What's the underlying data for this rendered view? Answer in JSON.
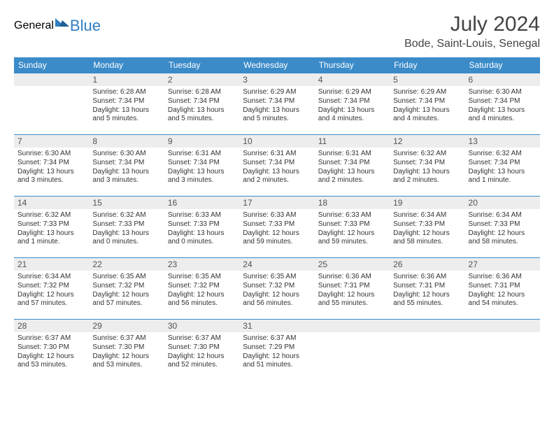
{
  "logo": {
    "part1": "General",
    "part2": "Blue"
  },
  "title": "July 2024",
  "location": "Bode, Saint-Louis, Senegal",
  "colors": {
    "header_bg": "#3b8bc9",
    "header_fg": "#ffffff",
    "daynum_bg": "#ededed",
    "row_border": "#3b8bc9",
    "logo_accent": "#2f7fc2",
    "text": "#333333"
  },
  "weekdays": [
    "Sunday",
    "Monday",
    "Tuesday",
    "Wednesday",
    "Thursday",
    "Friday",
    "Saturday"
  ],
  "weeks": [
    [
      null,
      {
        "n": "1",
        "sr": "Sunrise: 6:28 AM",
        "ss": "Sunset: 7:34 PM",
        "d1": "Daylight: 13 hours",
        "d2": "and 5 minutes."
      },
      {
        "n": "2",
        "sr": "Sunrise: 6:28 AM",
        "ss": "Sunset: 7:34 PM",
        "d1": "Daylight: 13 hours",
        "d2": "and 5 minutes."
      },
      {
        "n": "3",
        "sr": "Sunrise: 6:29 AM",
        "ss": "Sunset: 7:34 PM",
        "d1": "Daylight: 13 hours",
        "d2": "and 5 minutes."
      },
      {
        "n": "4",
        "sr": "Sunrise: 6:29 AM",
        "ss": "Sunset: 7:34 PM",
        "d1": "Daylight: 13 hours",
        "d2": "and 4 minutes."
      },
      {
        "n": "5",
        "sr": "Sunrise: 6:29 AM",
        "ss": "Sunset: 7:34 PM",
        "d1": "Daylight: 13 hours",
        "d2": "and 4 minutes."
      },
      {
        "n": "6",
        "sr": "Sunrise: 6:30 AM",
        "ss": "Sunset: 7:34 PM",
        "d1": "Daylight: 13 hours",
        "d2": "and 4 minutes."
      }
    ],
    [
      {
        "n": "7",
        "sr": "Sunrise: 6:30 AM",
        "ss": "Sunset: 7:34 PM",
        "d1": "Daylight: 13 hours",
        "d2": "and 3 minutes."
      },
      {
        "n": "8",
        "sr": "Sunrise: 6:30 AM",
        "ss": "Sunset: 7:34 PM",
        "d1": "Daylight: 13 hours",
        "d2": "and 3 minutes."
      },
      {
        "n": "9",
        "sr": "Sunrise: 6:31 AM",
        "ss": "Sunset: 7:34 PM",
        "d1": "Daylight: 13 hours",
        "d2": "and 3 minutes."
      },
      {
        "n": "10",
        "sr": "Sunrise: 6:31 AM",
        "ss": "Sunset: 7:34 PM",
        "d1": "Daylight: 13 hours",
        "d2": "and 2 minutes."
      },
      {
        "n": "11",
        "sr": "Sunrise: 6:31 AM",
        "ss": "Sunset: 7:34 PM",
        "d1": "Daylight: 13 hours",
        "d2": "and 2 minutes."
      },
      {
        "n": "12",
        "sr": "Sunrise: 6:32 AM",
        "ss": "Sunset: 7:34 PM",
        "d1": "Daylight: 13 hours",
        "d2": "and 2 minutes."
      },
      {
        "n": "13",
        "sr": "Sunrise: 6:32 AM",
        "ss": "Sunset: 7:34 PM",
        "d1": "Daylight: 13 hours",
        "d2": "and 1 minute."
      }
    ],
    [
      {
        "n": "14",
        "sr": "Sunrise: 6:32 AM",
        "ss": "Sunset: 7:33 PM",
        "d1": "Daylight: 13 hours",
        "d2": "and 1 minute."
      },
      {
        "n": "15",
        "sr": "Sunrise: 6:32 AM",
        "ss": "Sunset: 7:33 PM",
        "d1": "Daylight: 13 hours",
        "d2": "and 0 minutes."
      },
      {
        "n": "16",
        "sr": "Sunrise: 6:33 AM",
        "ss": "Sunset: 7:33 PM",
        "d1": "Daylight: 13 hours",
        "d2": "and 0 minutes."
      },
      {
        "n": "17",
        "sr": "Sunrise: 6:33 AM",
        "ss": "Sunset: 7:33 PM",
        "d1": "Daylight: 12 hours",
        "d2": "and 59 minutes."
      },
      {
        "n": "18",
        "sr": "Sunrise: 6:33 AM",
        "ss": "Sunset: 7:33 PM",
        "d1": "Daylight: 12 hours",
        "d2": "and 59 minutes."
      },
      {
        "n": "19",
        "sr": "Sunrise: 6:34 AM",
        "ss": "Sunset: 7:33 PM",
        "d1": "Daylight: 12 hours",
        "d2": "and 58 minutes."
      },
      {
        "n": "20",
        "sr": "Sunrise: 6:34 AM",
        "ss": "Sunset: 7:33 PM",
        "d1": "Daylight: 12 hours",
        "d2": "and 58 minutes."
      }
    ],
    [
      {
        "n": "21",
        "sr": "Sunrise: 6:34 AM",
        "ss": "Sunset: 7:32 PM",
        "d1": "Daylight: 12 hours",
        "d2": "and 57 minutes."
      },
      {
        "n": "22",
        "sr": "Sunrise: 6:35 AM",
        "ss": "Sunset: 7:32 PM",
        "d1": "Daylight: 12 hours",
        "d2": "and 57 minutes."
      },
      {
        "n": "23",
        "sr": "Sunrise: 6:35 AM",
        "ss": "Sunset: 7:32 PM",
        "d1": "Daylight: 12 hours",
        "d2": "and 56 minutes."
      },
      {
        "n": "24",
        "sr": "Sunrise: 6:35 AM",
        "ss": "Sunset: 7:32 PM",
        "d1": "Daylight: 12 hours",
        "d2": "and 56 minutes."
      },
      {
        "n": "25",
        "sr": "Sunrise: 6:36 AM",
        "ss": "Sunset: 7:31 PM",
        "d1": "Daylight: 12 hours",
        "d2": "and 55 minutes."
      },
      {
        "n": "26",
        "sr": "Sunrise: 6:36 AM",
        "ss": "Sunset: 7:31 PM",
        "d1": "Daylight: 12 hours",
        "d2": "and 55 minutes."
      },
      {
        "n": "27",
        "sr": "Sunrise: 6:36 AM",
        "ss": "Sunset: 7:31 PM",
        "d1": "Daylight: 12 hours",
        "d2": "and 54 minutes."
      }
    ],
    [
      {
        "n": "28",
        "sr": "Sunrise: 6:37 AM",
        "ss": "Sunset: 7:30 PM",
        "d1": "Daylight: 12 hours",
        "d2": "and 53 minutes."
      },
      {
        "n": "29",
        "sr": "Sunrise: 6:37 AM",
        "ss": "Sunset: 7:30 PM",
        "d1": "Daylight: 12 hours",
        "d2": "and 53 minutes."
      },
      {
        "n": "30",
        "sr": "Sunrise: 6:37 AM",
        "ss": "Sunset: 7:30 PM",
        "d1": "Daylight: 12 hours",
        "d2": "and 52 minutes."
      },
      {
        "n": "31",
        "sr": "Sunrise: 6:37 AM",
        "ss": "Sunset: 7:29 PM",
        "d1": "Daylight: 12 hours",
        "d2": "and 51 minutes."
      },
      null,
      null,
      null
    ]
  ]
}
